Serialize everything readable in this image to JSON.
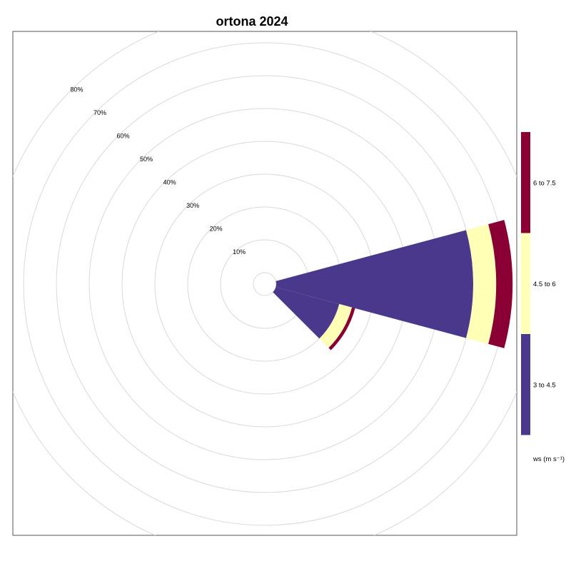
{
  "chart_data": {
    "type": "windrose",
    "title": "ortona 2024",
    "radial_ticks": [
      "10%",
      "20%",
      "30%",
      "40%",
      "50%",
      "60%",
      "70%",
      "80%"
    ],
    "radial_tick_values": [
      10,
      20,
      30,
      40,
      50,
      60,
      70,
      80
    ],
    "direction_units": "degrees",
    "legend": {
      "title": "ws (m s⁻¹)",
      "entries": [
        {
          "label": "3 to 4.5",
          "color": "#4A388D"
        },
        {
          "label": "4.5 to 6",
          "color": "#FFFFB6"
        },
        {
          "label": "6 to 7.5",
          "color": "#8A0034"
        }
      ]
    },
    "colors": {
      "ring_grid": "#d9d9d9",
      "panel_border": "#555555"
    },
    "directions": [
      90,
      120
    ],
    "series": [
      {
        "label": "3 to 4.5",
        "values": [
          60,
          20
        ]
      },
      {
        "label": "4.5 to 6",
        "values": [
          7,
          4
        ]
      },
      {
        "label": "6 to 7.5",
        "values": [
          5,
          1
        ]
      }
    ]
  }
}
